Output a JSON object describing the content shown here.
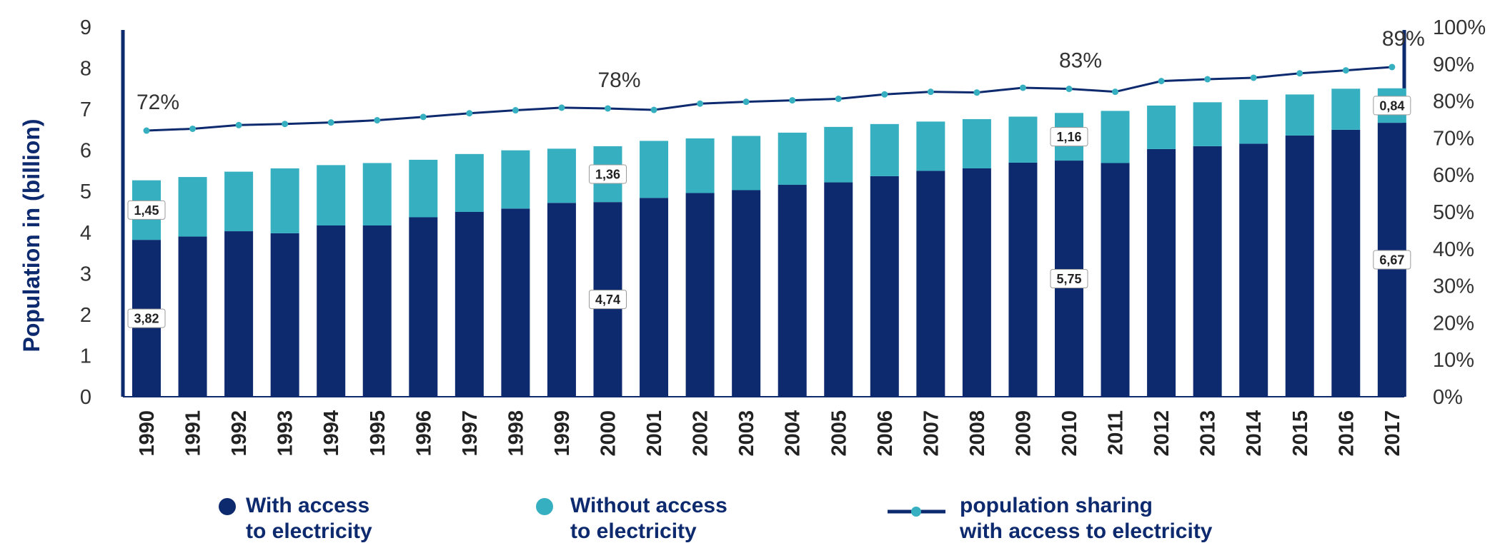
{
  "chart_data": {
    "type": "bar",
    "stacked": true,
    "title": "",
    "ylabel": "Population in (billion)",
    "ylim": [
      0,
      9
    ],
    "y2lim": [
      0,
      100
    ],
    "yticks": [
      "0",
      "1",
      "2",
      "3",
      "4",
      "5",
      "6",
      "7",
      "8",
      "9"
    ],
    "y2ticks": [
      "0%",
      "10%",
      "20%",
      "30%",
      "40%",
      "50%",
      "60%",
      "70%",
      "80%",
      "90%",
      "100%"
    ],
    "categories": [
      "1990",
      "1991",
      "1992",
      "1993",
      "1994",
      "1995",
      "1996",
      "1997",
      "1998",
      "1999",
      "2000",
      "2001",
      "2002",
      "2003",
      "2004",
      "2005",
      "2006",
      "2007",
      "2008",
      "2009",
      "2010",
      "2011",
      "2012",
      "2013",
      "2014",
      "2015",
      "2016",
      "2017"
    ],
    "colors": {
      "with": "#0e2a6e",
      "without": "#36b0c1",
      "line": "#0e2a6e",
      "marker": "#36b0c1"
    },
    "series": [
      {
        "name": "With access to electricity",
        "values": [
          3.82,
          3.9,
          4.03,
          3.98,
          4.17,
          4.17,
          4.37,
          4.5,
          4.58,
          4.72,
          4.74,
          4.84,
          4.96,
          5.03,
          5.16,
          5.22,
          5.37,
          5.5,
          5.56,
          5.7,
          5.75,
          5.69,
          6.03,
          6.1,
          6.16,
          6.36,
          6.5,
          6.67
        ]
      },
      {
        "name": "Without access to electricity",
        "values": [
          1.45,
          1.45,
          1.45,
          1.58,
          1.47,
          1.52,
          1.4,
          1.41,
          1.42,
          1.32,
          1.36,
          1.39,
          1.33,
          1.32,
          1.27,
          1.35,
          1.27,
          1.2,
          1.2,
          1.12,
          1.16,
          1.27,
          1.06,
          1.07,
          1.07,
          1.0,
          1.0,
          0.84
        ]
      },
      {
        "name": "population sharing with access to electricity",
        "type": "line",
        "axis": "right",
        "values": [
          72,
          72.5,
          73.5,
          73.8,
          74.2,
          74.8,
          75.7,
          76.7,
          77.5,
          78.2,
          78,
          77.6,
          79.3,
          79.8,
          80.2,
          80.6,
          81.8,
          82.5,
          82.3,
          83.6,
          83.3,
          82.5,
          85.4,
          85.9,
          86.3,
          87.5,
          88.3,
          89.2
        ]
      }
    ],
    "data_labels": [
      {
        "year": "1990",
        "series": "with",
        "text": "3,82"
      },
      {
        "year": "1990",
        "series": "without",
        "text": "1,45"
      },
      {
        "year": "2000",
        "series": "with",
        "text": "4,74"
      },
      {
        "year": "2000",
        "series": "without",
        "text": "1,36"
      },
      {
        "year": "2010",
        "series": "with",
        "text": "5,75"
      },
      {
        "year": "2010",
        "series": "without",
        "text": "1,16"
      },
      {
        "year": "2017",
        "series": "with",
        "text": "6,67"
      },
      {
        "year": "2017",
        "series": "without",
        "text": "0,84"
      }
    ],
    "line_annotations": [
      {
        "year": "1990",
        "text": "72%"
      },
      {
        "year": "2000",
        "text": "78%"
      },
      {
        "year": "2010",
        "text": "83%"
      },
      {
        "year": "2017",
        "text": "89%"
      }
    ]
  },
  "legend": {
    "with_line1": "With access",
    "with_line2": "to electricity",
    "without_line1": "Without access",
    "without_line2": "to electricity",
    "share_line1": "population sharing",
    "share_line2": "with access to electricity"
  }
}
